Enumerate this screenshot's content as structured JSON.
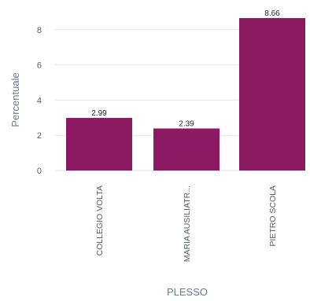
{
  "chart_data": {
    "type": "bar",
    "categories": [
      "COLLEGIO VOLTA",
      "MARIA AUSILIATR...",
      "PIETRO SCOLA"
    ],
    "values": [
      2.99,
      2.39,
      8.66
    ],
    "value_labels": [
      "2.99",
      "2.39",
      "8.66"
    ],
    "xlabel": "PLESSO",
    "ylabel": "Percentuale",
    "ylim": [
      0,
      8.7
    ],
    "yticks": [
      0,
      2,
      4,
      6,
      8
    ],
    "grid": true,
    "legend": "none",
    "bar_color": "#8b1a63"
  }
}
